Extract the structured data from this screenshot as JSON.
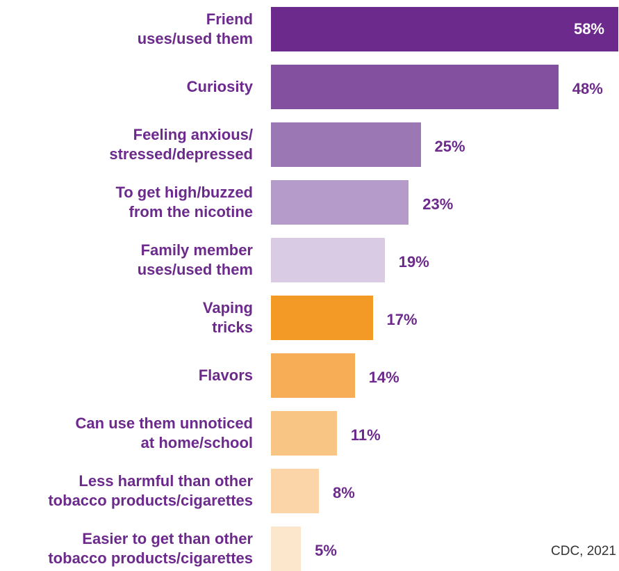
{
  "chart_data": {
    "type": "bar",
    "orientation": "horizontal",
    "categories": [
      "Friend\nuses/used them",
      "Curiosity",
      "Feeling anxious/\nstressed/depressed",
      "To get high/buzzed\nfrom the nicotine",
      "Family member\nuses/used them",
      "Vaping\ntricks",
      "Flavors",
      "Can use them unnoticed\nat home/school",
      "Less harmful than other\ntobacco products/cigarettes",
      "Easier to get than other\ntobacco products/cigarettes"
    ],
    "values": [
      58,
      48,
      25,
      23,
      19,
      17,
      14,
      11,
      8,
      5
    ],
    "value_labels": [
      "58%",
      "48%",
      "25%",
      "23%",
      "19%",
      "17%",
      "14%",
      "11%",
      "8%",
      "5%"
    ],
    "bar_colors": [
      "#6c2a8c",
      "#8350a0",
      "#9b78b4",
      "#b59bca",
      "#d9cbe3",
      "#f39a26",
      "#f7ad55",
      "#f9c585",
      "#fbd5a8",
      "#fde7cc"
    ],
    "xlim": [
      0,
      58
    ],
    "grid": false,
    "legend": "none",
    "title": "",
    "xlabel": "",
    "ylabel": ""
  },
  "source": "CDC, 2021",
  "colors": {
    "label": "#6c2a8c",
    "inside_label": "#ffffff"
  }
}
